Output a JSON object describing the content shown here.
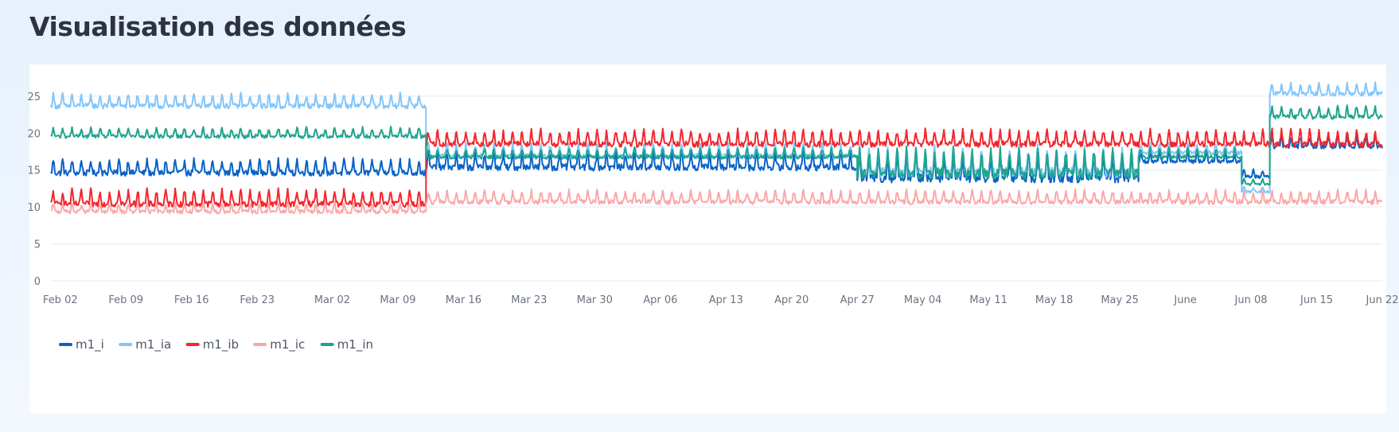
{
  "header": {
    "title": "Visualisation des données"
  },
  "colors": {
    "m1_i": "#0a63c7",
    "m1_ia": "#83c6fb",
    "m1_ib": "#f4262c",
    "m1_ic": "#fba8a8",
    "m1_in": "#1ea58c",
    "grid": "#e8eaee",
    "axis_text": "#6b7280"
  },
  "chart_data": {
    "type": "line",
    "title": "",
    "xlabel": "",
    "ylabel": "",
    "x_range": [
      "2020-02-01",
      "2020-06-22"
    ],
    "ylim": [
      0,
      28
    ],
    "y_ticks": [
      0,
      5,
      10,
      15,
      20,
      25
    ],
    "x_tick_labels": [
      "Feb 02",
      "Feb 09",
      "Feb 16",
      "Feb 23",
      "Mar 02",
      "Mar 09",
      "Mar 16",
      "Mar 23",
      "Mar 30",
      "Apr 06",
      "Apr 13",
      "Apr 20",
      "Apr 27",
      "May 04",
      "May 11",
      "May 18",
      "May 25",
      "June",
      "Jun 08",
      "Jun 15",
      "Jun 22"
    ],
    "x_tick_dates": [
      "2020-02-02",
      "2020-02-09",
      "2020-02-16",
      "2020-02-23",
      "2020-03-02",
      "2020-03-09",
      "2020-03-16",
      "2020-03-23",
      "2020-03-30",
      "2020-04-06",
      "2020-04-13",
      "2020-04-20",
      "2020-04-27",
      "2020-05-04",
      "2020-05-11",
      "2020-05-18",
      "2020-05-25",
      "2020-06-01",
      "2020-06-08",
      "2020-06-15",
      "2020-06-22"
    ],
    "grid": true,
    "legend_position": "bottom-left",
    "series": [
      {
        "name": "m1_i",
        "segments": [
          {
            "start": "2020-02-01",
            "end": "2020-03-12",
            "level": 15.0,
            "amp": 1.6
          },
          {
            "start": "2020-03-12",
            "end": "2020-04-27",
            "level": 15.8,
            "amp": 1.8
          },
          {
            "start": "2020-04-27",
            "end": "2020-05-27",
            "level": 14.6,
            "amp": 2.6
          },
          {
            "start": "2020-05-27",
            "end": "2020-06-07",
            "level": 16.4,
            "amp": 1.0
          },
          {
            "start": "2020-06-07",
            "end": "2020-06-10",
            "level": 14.3,
            "amp": 0.8
          },
          {
            "start": "2020-06-10",
            "end": "2020-06-22",
            "level": 18.5,
            "amp": 1.2
          }
        ]
      },
      {
        "name": "m1_ia",
        "segments": [
          {
            "start": "2020-02-01",
            "end": "2020-03-12",
            "level": 24.0,
            "amp": 1.4
          },
          {
            "start": "2020-03-12",
            "end": "2020-04-27",
            "level": 17.2,
            "amp": 1.4
          },
          {
            "start": "2020-04-27",
            "end": "2020-05-27",
            "level": 15.4,
            "amp": 2.8
          },
          {
            "start": "2020-05-27",
            "end": "2020-06-07",
            "level": 17.6,
            "amp": 1.0
          },
          {
            "start": "2020-06-07",
            "end": "2020-06-10",
            "level": 12.2,
            "amp": 0.6
          },
          {
            "start": "2020-06-10",
            "end": "2020-06-22",
            "level": 25.6,
            "amp": 1.2
          }
        ]
      },
      {
        "name": "m1_ib",
        "segments": [
          {
            "start": "2020-02-01",
            "end": "2020-03-12",
            "level": 10.8,
            "amp": 1.6
          },
          {
            "start": "2020-03-12",
            "end": "2020-06-22",
            "level": 18.9,
            "amp": 1.6
          }
        ]
      },
      {
        "name": "m1_ic",
        "segments": [
          {
            "start": "2020-02-01",
            "end": "2020-03-12",
            "level": 9.6,
            "amp": 1.0
          },
          {
            "start": "2020-03-12",
            "end": "2020-06-22",
            "level": 11.0,
            "amp": 1.3
          }
        ]
      },
      {
        "name": "m1_in",
        "segments": [
          {
            "start": "2020-02-01",
            "end": "2020-03-12",
            "level": 19.8,
            "amp": 1.0
          },
          {
            "start": "2020-03-12",
            "end": "2020-04-27",
            "level": 17.0,
            "amp": 1.0
          },
          {
            "start": "2020-04-27",
            "end": "2020-05-27",
            "level": 15.2,
            "amp": 2.8
          },
          {
            "start": "2020-05-27",
            "end": "2020-06-07",
            "level": 17.0,
            "amp": 1.0
          },
          {
            "start": "2020-06-07",
            "end": "2020-06-10",
            "level": 13.2,
            "amp": 0.6
          },
          {
            "start": "2020-06-10",
            "end": "2020-06-22",
            "level": 22.5,
            "amp": 1.2
          }
        ]
      }
    ]
  }
}
